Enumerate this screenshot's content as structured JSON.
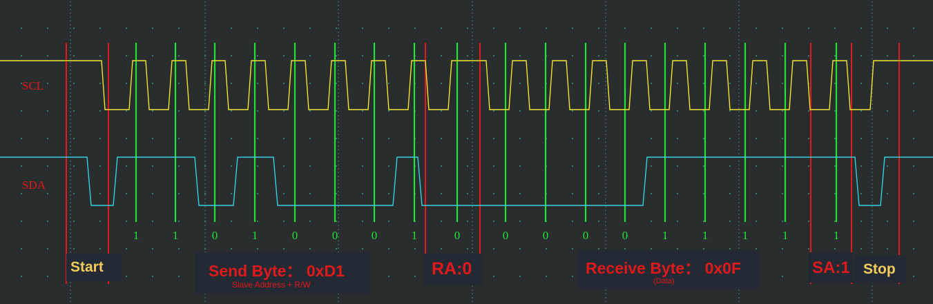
{
  "signals": {
    "scl": {
      "label": "SCL",
      "color": "#f2e630",
      "label_color": "#e0191c"
    },
    "sda": {
      "label": "SDA",
      "color": "#35d1e0",
      "label_color": "#e0191c"
    }
  },
  "colors": {
    "background": "#2a2d2e",
    "grid_dots": "#3f7a73",
    "sample_line": "#21e337",
    "marker_line": "#e0191c",
    "bit_text": "#21e337",
    "label_red": "#e0191c",
    "label_yellow": "#f4cc5c",
    "box_bg": "#232a33"
  },
  "bits": [
    "1",
    "1",
    "0",
    "1",
    "0",
    "0",
    "0",
    "1",
    "0",
    "0",
    "0",
    "0",
    "0",
    "1",
    "1",
    "1",
    "1",
    "1"
  ],
  "annotations": {
    "start": "Start",
    "send_byte": {
      "title": "Send Byte：  0xD1",
      "subtitle": "Slave Address + R/W"
    },
    "ra": "RA:0",
    "receive_byte": {
      "title": "Receive Byte：  0x0F",
      "subtitle": "(Data)"
    },
    "sa": "SA:1",
    "stop": "Stop"
  }
}
